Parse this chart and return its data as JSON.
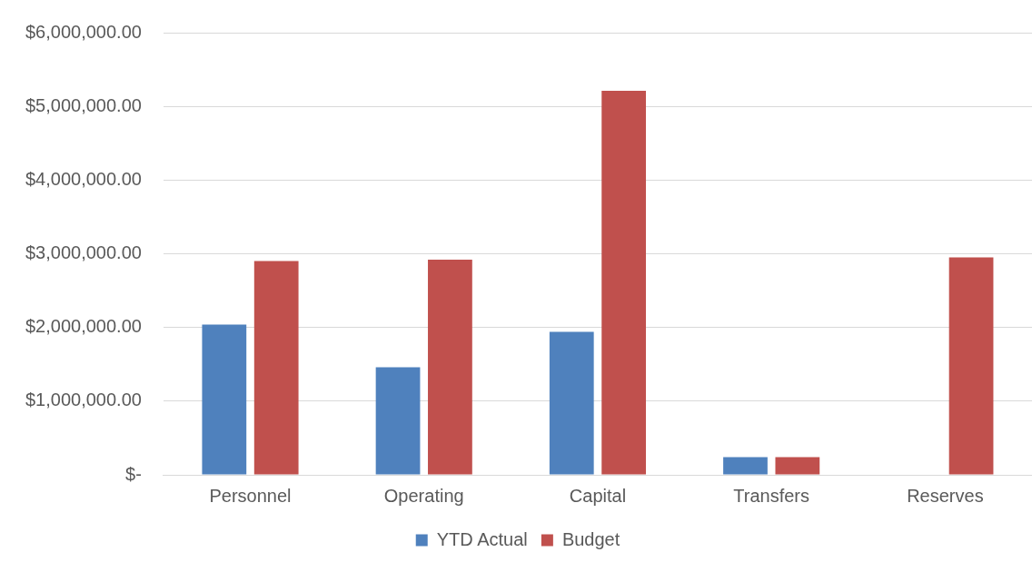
{
  "chart_data": {
    "type": "bar",
    "categories": [
      "Personnel",
      "Operating",
      "Capital",
      "Transfers",
      "Reserves"
    ],
    "series": [
      {
        "name": "YTD Actual",
        "color": "#4f81bd",
        "values": [
          2040000,
          1460000,
          1940000,
          240000,
          0
        ]
      },
      {
        "name": "Budget",
        "color": "#c0504d",
        "values": [
          2900000,
          2920000,
          5210000,
          240000,
          2950000
        ]
      }
    ],
    "ylim": [
      0,
      6000000
    ],
    "yticks": [
      {
        "value": 0,
        "label": "$-"
      },
      {
        "value": 1000000,
        "label": "$1,000,000.00"
      },
      {
        "value": 2000000,
        "label": "$2,000,000.00"
      },
      {
        "value": 3000000,
        "label": "$3,000,000.00"
      },
      {
        "value": 4000000,
        "label": "$4,000,000.00"
      },
      {
        "value": 5000000,
        "label": "$5,000,000.00"
      },
      {
        "value": 6000000,
        "label": "$6,000,000.00"
      }
    ],
    "grid": "y",
    "legend": "bottom"
  }
}
